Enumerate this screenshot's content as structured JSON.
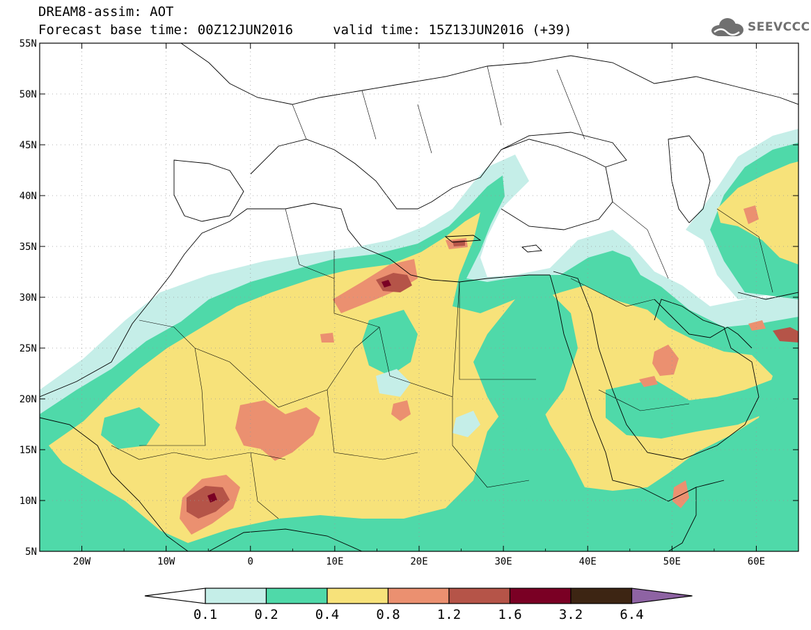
{
  "header": {
    "title_line1": "DREAM8-assim: AOT",
    "title_line2": "Forecast base time: 00Z12JUN2016     valid time: 15Z13JUN2016 (+39)"
  },
  "logo": {
    "text": "SEEVCCC",
    "icon": "cloud-icon"
  },
  "map": {
    "lon_range": [
      -25,
      65
    ],
    "lat_range": [
      5,
      55
    ],
    "lat_labels": [
      "55N",
      "50N",
      "45N",
      "40N",
      "35N",
      "30N",
      "25N",
      "20N",
      "15N",
      "10N",
      "5N"
    ],
    "lon_labels": [
      "20W",
      "10W",
      "0",
      "10E",
      "20E",
      "30E",
      "40E",
      "50E",
      "60E"
    ],
    "grid": "dotted"
  },
  "legend": {
    "levels": [
      "0.1",
      "0.2",
      "0.4",
      "0.8",
      "1.2",
      "1.6",
      "3.2",
      "6.4"
    ],
    "colors": [
      "#ffffff",
      "#c5eee8",
      "#4fd9a9",
      "#f7e27a",
      "#eb9070",
      "#b55448",
      "#7a0024",
      "#3d2513",
      "#8e63a3"
    ]
  }
}
